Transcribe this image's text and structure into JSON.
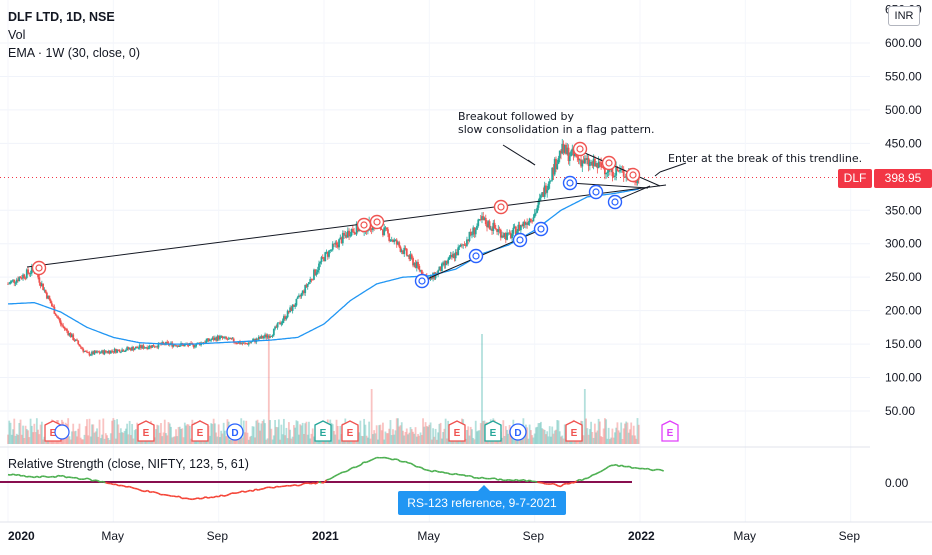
{
  "header": {
    "symbol_line": "DLF LTD, 1D, NSE",
    "volume_label": "Vol",
    "ema_label": "EMA · 1W (30, close, 0)",
    "currency": "INR"
  },
  "price_axis": {
    "ticks": [
      "600.00",
      "550.00",
      "500.00",
      "450.00",
      "350.00",
      "300.00",
      "250.00",
      "200.00",
      "150.00",
      "100.00",
      "50.00"
    ],
    "top_partial": "650.00"
  },
  "current_price": {
    "symbol": "DLF",
    "value": "398.95"
  },
  "time_axis": {
    "labels": [
      "2020",
      "May",
      "Sep",
      "2021",
      "May",
      "Sep",
      "2022",
      "May",
      "Sep"
    ]
  },
  "annotations": {
    "breakout_line1": "Breakout followed by",
    "breakout_line2": "slow consolidation in a flag pattern.",
    "entry_note": "Enter at the break of this trendline."
  },
  "rs_panel": {
    "label": "Relative Strength (close, NIFTY, 123, 5, 61)",
    "zero_tick": "0.00",
    "tooltip": "RS-123 reference, 9-7-2021"
  },
  "earnings_markers": [
    "E",
    "E",
    "E",
    "E",
    "D",
    "E",
    "E",
    "E",
    "E",
    "D",
    "E",
    "E"
  ],
  "colors": {
    "up": "#26a69a",
    "down": "#ef5350",
    "ema": "#2196f3",
    "rs_up": "#4caf50",
    "rs_down": "#f44336",
    "baseline": "#880e4f"
  },
  "chart_data": {
    "type": "line",
    "x": [
      "2020-01",
      "2020-02",
      "2020-03",
      "2020-04",
      "2020-05",
      "2020-06",
      "2020-07",
      "2020-08",
      "2020-09",
      "2020-10",
      "2020-11",
      "2020-12",
      "2021-01",
      "2021-02",
      "2021-03",
      "2021-04",
      "2021-05",
      "2021-06",
      "2021-07",
      "2021-08",
      "2021-09",
      "2021-10",
      "2021-11",
      "2021-12",
      "2022-01"
    ],
    "series": [
      {
        "values": [
          240,
          262,
          180,
          135,
          140,
          145,
          150,
          148,
          160,
          150,
          165,
          215,
          280,
          320,
          330,
          290,
          245,
          285,
          335,
          310,
          345,
          440,
          420,
          410,
          399
        ]
      },
      {
        "values": [
          210,
          212,
          198,
          175,
          160,
          152,
          150,
          150,
          152,
          154,
          156,
          160,
          180,
          215,
          240,
          250,
          252,
          262,
          285,
          298,
          320,
          350,
          370,
          375,
          382
        ]
      }
    ],
    "ylim": [
      0,
      660
    ]
  }
}
